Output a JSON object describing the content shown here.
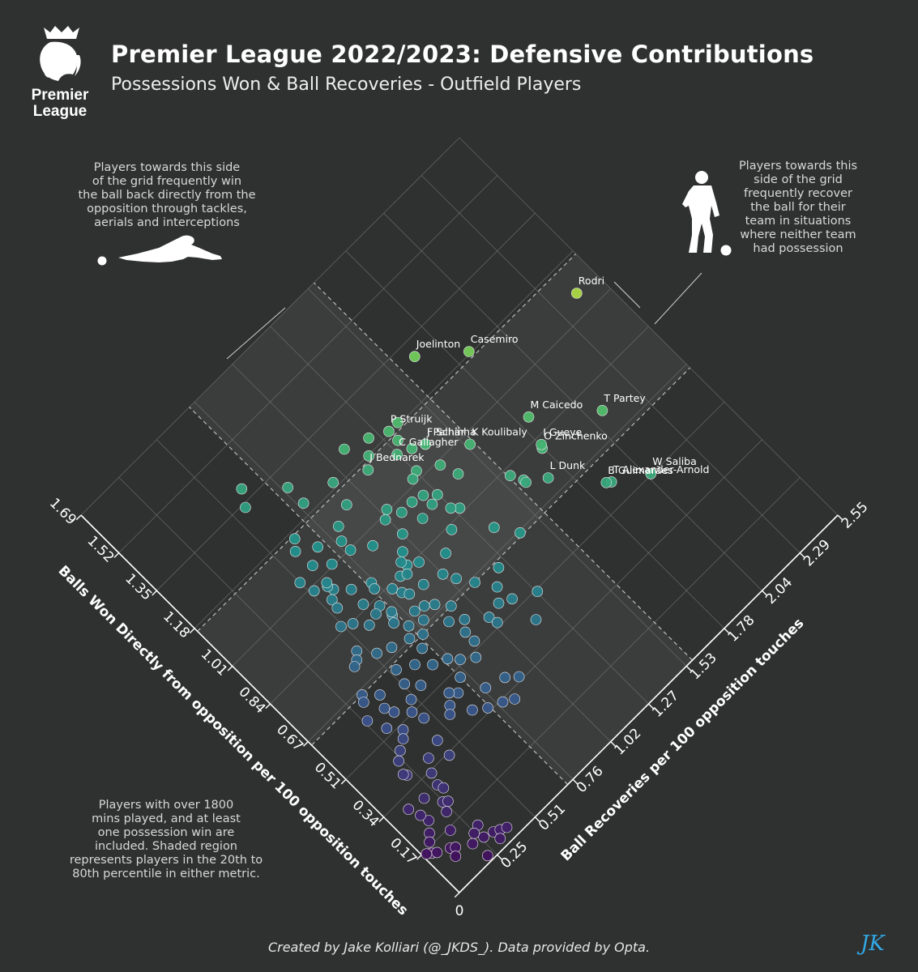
{
  "header": {
    "title": "Premier League 2022/2023: Defensive Contributions",
    "subtitle": "Possessions Won & Ball Recoveries - Outfield Players",
    "logo_text_1": "Premier",
    "logo_text_2": "League"
  },
  "notes": {
    "left_line_1": "Players towards this side",
    "left_line_2": "of the grid frequently win",
    "left_line_3": "the ball back directly from the",
    "left_line_4": "opposition through tackles,",
    "left_line_5": "aerials and interceptions",
    "right_line_1": "Players towards this",
    "right_line_2": "side of the grid",
    "right_line_3": "frequently recover",
    "right_line_4": "the ball for their",
    "right_line_5": "team in situations",
    "right_line_6": "where neither team",
    "right_line_7": "had possession",
    "bottom_line_1": "Players with over 1800",
    "bottom_line_2": "mins played, and at least",
    "bottom_line_3": "one possession win are",
    "bottom_line_4": "included. Shaded region",
    "bottom_line_5": "represents players in the 20th to",
    "bottom_line_6": "80th percentile in either metric."
  },
  "footer": {
    "credit": "Created by Jake Kolliari (@_JKDS_). Data provided by Opta.",
    "brand": "JK"
  },
  "chart_data": {
    "type": "scatter",
    "title": "Premier League 2022/2023: Defensive Contributions",
    "xlabel": "Balls Won Directly from opposition per 100 opposition touches",
    "ylabel": "Ball Recoveries per 100 opposition touches",
    "x_ticks": [
      "0",
      "0.17",
      "0.34",
      "0.51",
      "0.67",
      "0.84",
      "1.01",
      "1.18",
      "1.35",
      "1.52",
      "1.69"
    ],
    "y_ticks": [
      "0.25",
      "0.51",
      "0.76",
      "1.02",
      "1.27",
      "1.53",
      "1.78",
      "2.04",
      "2.29",
      "2.55"
    ],
    "x_range": [
      0,
      1.69
    ],
    "y_range": [
      0,
      2.55
    ],
    "shaded_x_range": [
      0.66,
      1.17
    ],
    "shaded_y_range": [
      0.73,
      1.57
    ],
    "colormap": [
      "#440154",
      "#3b528b",
      "#21918c",
      "#5ec962",
      "#fde725"
    ],
    "labeled_points": [
      {
        "name": "Rodri",
        "x": 1.08,
        "y": 2.42
      },
      {
        "name": "Joelinton",
        "x": 1.3,
        "y": 1.66
      },
      {
        "name": "Casemiro",
        "x": 1.19,
        "y": 1.86
      },
      {
        "name": "M Caicedo",
        "x": 0.91,
        "y": 1.84
      },
      {
        "name": "T Partey",
        "x": 0.76,
        "y": 2.11
      },
      {
        "name": "O Zinchenko",
        "x": 0.81,
        "y": 1.78
      },
      {
        "name": "I Gueye",
        "x": 0.82,
        "y": 1.79
      },
      {
        "name": "K Koulibaly",
        "x": 0.98,
        "y": 1.55
      },
      {
        "name": "F Schär",
        "x": 1.08,
        "y": 1.4
      },
      {
        "name": "J Palhinha",
        "x": 1.08,
        "y": 1.4
      },
      {
        "name": "P Struijk",
        "x": 1.19,
        "y": 1.32
      },
      {
        "name": "W Saliba",
        "x": 0.51,
        "y": 2.06
      },
      {
        "name": "L Dunk",
        "x": 0.73,
        "y": 1.7
      },
      {
        "name": "T Alexander-Arnold",
        "x": 0.58,
        "y": 1.9
      },
      {
        "name": "B Guimarães",
        "x": 0.59,
        "y": 1.88
      },
      {
        "name": "C Gallagher",
        "x": 1.12,
        "y": 1.27
      },
      {
        "name": "J Bednarek",
        "x": 1.15,
        "y": 1.12
      }
    ],
    "other_points": [
      {
        "x": 1.22,
        "y": 1.23
      },
      {
        "x": 1.0,
        "y": 1.38
      },
      {
        "x": 0.94,
        "y": 1.41
      },
      {
        "x": 0.82,
        "y": 1.58
      },
      {
        "x": 0.78,
        "y": 1.61
      },
      {
        "x": 0.77,
        "y": 1.61
      },
      {
        "x": 0.86,
        "y": 1.3
      },
      {
        "x": 0.88,
        "y": 1.27
      },
      {
        "x": 0.93,
        "y": 1.22
      },
      {
        "x": 0.94,
        "y": 1.27
      },
      {
        "x": 0.97,
        "y": 1.22
      },
      {
        "x": 0.74,
        "y": 1.35
      },
      {
        "x": 0.67,
        "y": 1.42
      },
      {
        "x": 0.83,
        "y": 1.2
      },
      {
        "x": 0.92,
        "y": 1.14
      },
      {
        "x": 1.02,
        "y": 1.05
      },
      {
        "x": 0.98,
        "y": 1.16
      },
      {
        "x": 1.0,
        "y": 1.01
      },
      {
        "x": 1.39,
        "y": 0.63
      },
      {
        "x": 1.09,
        "y": 0.83
      },
      {
        "x": 0.79,
        "y": 1.1
      },
      {
        "x": 0.83,
        "y": 0.98
      },
      {
        "x": 0.85,
        "y": 0.93
      },
      {
        "x": 0.64,
        "y": 1.23
      },
      {
        "x": 0.5,
        "y": 1.28
      },
      {
        "x": 0.56,
        "y": 1.11
      },
      {
        "x": 0.55,
        "y": 1.03
      },
      {
        "x": 0.52,
        "y": 1.04
      },
      {
        "x": 0.66,
        "y": 0.94
      },
      {
        "x": 0.6,
        "y": 0.94
      },
      {
        "x": 0.7,
        "y": 0.89
      },
      {
        "x": 0.77,
        "y": 0.92
      },
      {
        "x": 0.83,
        "y": 0.8
      },
      {
        "x": 0.89,
        "y": 0.75
      },
      {
        "x": 0.87,
        "y": 0.74
      },
      {
        "x": 1.06,
        "y": 0.61
      },
      {
        "x": 0.86,
        "y": 0.65
      },
      {
        "x": 0.82,
        "y": 0.7
      },
      {
        "x": 0.77,
        "y": 0.71
      },
      {
        "x": 0.96,
        "y": 0.6
      },
      {
        "x": 1.05,
        "y": 0.51
      },
      {
        "x": 0.92,
        "y": 0.66
      },
      {
        "x": 0.98,
        "y": 0.59
      },
      {
        "x": 0.99,
        "y": 0.6
      },
      {
        "x": 1.0,
        "y": 0.53
      },
      {
        "x": 0.94,
        "y": 0.56
      },
      {
        "x": 0.78,
        "y": 0.72
      },
      {
        "x": 0.81,
        "y": 0.66
      },
      {
        "x": 0.75,
        "y": 0.69
      },
      {
        "x": 0.71,
        "y": 0.73
      },
      {
        "x": 0.8,
        "y": 0.6
      },
      {
        "x": 0.84,
        "y": 0.55
      },
      {
        "x": 0.86,
        "y": 0.5
      },
      {
        "x": 0.66,
        "y": 0.75
      },
      {
        "x": 0.68,
        "y": 0.69
      },
      {
        "x": 0.7,
        "y": 0.6
      },
      {
        "x": 0.72,
        "y": 0.53
      },
      {
        "x": 0.63,
        "y": 0.7
      },
      {
        "x": 0.61,
        "y": 0.62
      },
      {
        "x": 0.64,
        "y": 0.54
      },
      {
        "x": 0.77,
        "y": 0.47
      },
      {
        "x": 0.75,
        "y": 0.44
      },
      {
        "x": 0.74,
        "y": 0.41
      },
      {
        "x": 0.59,
        "y": 0.52
      },
      {
        "x": 0.55,
        "y": 0.57
      },
      {
        "x": 0.54,
        "y": 0.49
      },
      {
        "x": 0.44,
        "y": 0.6
      },
      {
        "x": 0.42,
        "y": 0.57
      },
      {
        "x": 0.45,
        "y": 0.67
      },
      {
        "x": 0.38,
        "y": 0.66
      },
      {
        "x": 0.62,
        "y": 0.4
      },
      {
        "x": 0.51,
        "y": 0.45
      },
      {
        "x": 0.47,
        "y": 0.47
      },
      {
        "x": 0.66,
        "y": 0.34
      },
      {
        "x": 0.64,
        "y": 0.32
      },
      {
        "x": 0.58,
        "y": 0.37
      },
      {
        "x": 0.55,
        "y": 0.39
      },
      {
        "x": 0.49,
        "y": 0.36
      },
      {
        "x": 0.53,
        "y": 0.31
      },
      {
        "x": 0.59,
        "y": 0.27
      },
      {
        "x": 0.47,
        "y": 0.33
      },
      {
        "x": 0.45,
        "y": 0.28
      },
      {
        "x": 0.39,
        "y": 0.44
      },
      {
        "x": 0.33,
        "y": 0.43
      },
      {
        "x": 0.37,
        "y": 0.35
      },
      {
        "x": 0.33,
        "y": 0.31
      },
      {
        "x": 0.43,
        "y": 0.24
      },
      {
        "x": 0.38,
        "y": 0.22
      },
      {
        "x": 0.39,
        "y": 0.21
      },
      {
        "x": 0.29,
        "y": 0.29
      },
      {
        "x": 0.27,
        "y": 0.3
      },
      {
        "x": 0.24,
        "y": 0.25
      },
      {
        "x": 0.23,
        "y": 0.27
      },
      {
        "x": 0.21,
        "y": 0.23
      },
      {
        "x": 0.29,
        "y": 0.2
      },
      {
        "x": 0.23,
        "y": 0.14
      },
      {
        "x": 0.16,
        "y": 0.18
      },
      {
        "x": 0.2,
        "y": 0.1
      },
      {
        "x": 0.18,
        "y": 0.07
      },
      {
        "x": 0.15,
        "y": 0.04
      },
      {
        "x": 0.14,
        "y": 0.06
      },
      {
        "x": 0.16,
        "y": 0.02
      },
      {
        "x": 0.12,
        "y": 0.12
      },
      {
        "x": 0.11,
        "y": 0.14
      },
      {
        "x": 0.09,
        "y": 0.11
      },
      {
        "x": 0.08,
        "y": 0.21
      },
      {
        "x": 0.07,
        "y": 0.27
      },
      {
        "x": 0.06,
        "y": 0.32
      },
      {
        "x": 0.05,
        "y": 0.35
      },
      {
        "x": 0.04,
        "y": 0.38
      },
      {
        "x": 0.03,
        "y": 0.32
      },
      {
        "x": 0.02,
        "y": 0.22
      },
      {
        "x": 0.26,
        "y": 0.13
      },
      {
        "x": 0.3,
        "y": 0.11
      },
      {
        "x": 0.11,
        "y": 0.29
      },
      {
        "x": 0.1,
        "y": 0.25
      },
      {
        "x": 1.19,
        "y": 1.38
      },
      {
        "x": 1.15,
        "y": 1.32
      },
      {
        "x": 1.1,
        "y": 1.34
      },
      {
        "x": 1.25,
        "y": 1.11
      },
      {
        "x": 1.18,
        "y": 1.17
      },
      {
        "x": 1.04,
        "y": 1.28
      },
      {
        "x": 1.03,
        "y": 1.24
      },
      {
        "x": 0.98,
        "y": 1.09
      },
      {
        "x": 0.93,
        "y": 1.02
      },
      {
        "x": 0.89,
        "y": 0.96
      },
      {
        "x": 0.87,
        "y": 0.92
      },
      {
        "x": 0.84,
        "y": 0.87
      },
      {
        "x": 0.83,
        "y": 0.9
      },
      {
        "x": 0.8,
        "y": 0.82
      },
      {
        "x": 0.78,
        "y": 0.84
      },
      {
        "x": 0.73,
        "y": 0.8
      },
      {
        "x": 0.72,
        "y": 0.85
      },
      {
        "x": 0.69,
        "y": 0.8
      },
      {
        "x": 0.63,
        "y": 0.88
      },
      {
        "x": 0.57,
        "y": 0.9
      },
      {
        "x": 0.53,
        "y": 0.9
      },
      {
        "x": 0.52,
        "y": 0.79
      },
      {
        "x": 0.49,
        "y": 0.85
      },
      {
        "x": 0.55,
        "y": 0.75
      },
      {
        "x": 0.57,
        "y": 0.68
      },
      {
        "x": 0.48,
        "y": 0.73
      },
      {
        "x": 0.47,
        "y": 0.64
      },
      {
        "x": 0.4,
        "y": 0.78
      },
      {
        "x": 0.38,
        "y": 0.88
      },
      {
        "x": 0.35,
        "y": 0.93
      },
      {
        "x": 0.31,
        "y": 0.84
      },
      {
        "x": 0.35,
        "y": 0.72
      },
      {
        "x": 0.33,
        "y": 0.79
      },
      {
        "x": 0.91,
        "y": 0.55
      },
      {
        "x": 1.13,
        "y": 0.6
      },
      {
        "x": 1.16,
        "y": 0.64
      },
      {
        "x": 1.22,
        "y": 0.79
      },
      {
        "x": 1.29,
        "y": 0.79
      },
      {
        "x": 1.34,
        "y": 0.58
      },
      {
        "x": 1.01,
        "y": 0.79
      },
      {
        "x": 1.02,
        "y": 0.68
      },
      {
        "x": 1.09,
        "y": 0.69
      },
      {
        "x": 1.05,
        "y": 0.79
      },
      {
        "x": 0.97,
        "y": 0.88
      },
      {
        "x": 1.12,
        "y": 0.93
      },
      {
        "x": 1.2,
        "y": 0.96
      },
      {
        "x": 0.54,
        "y": 1.17
      },
      {
        "x": 0.6,
        "y": 1.16
      },
      {
        "x": 0.66,
        "y": 1.1
      },
      {
        "x": 0.71,
        "y": 1.05
      },
      {
        "x": 0.75,
        "y": 1.02
      },
      {
        "x": 0.44,
        "y": 1.18
      }
    ]
  }
}
